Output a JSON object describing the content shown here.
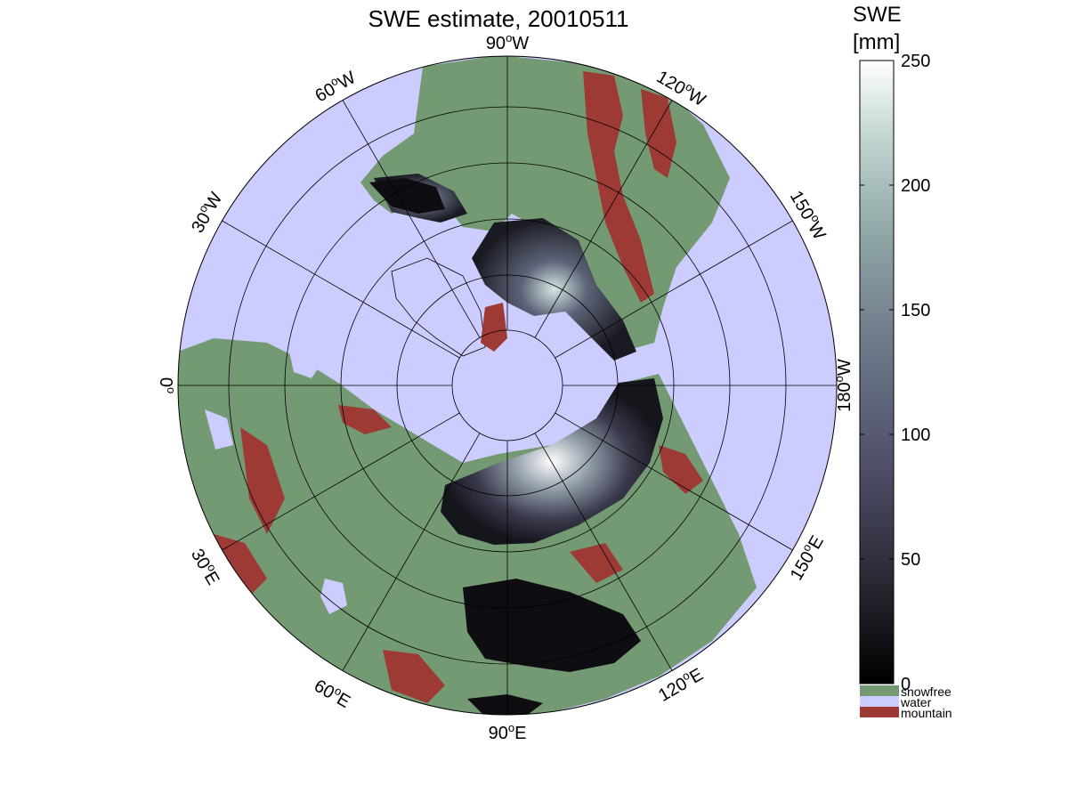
{
  "title": "SWE estimate, 20010511",
  "colorbar": {
    "title_line1": "SWE",
    "title_line2": "[mm]",
    "min": 0,
    "max": 250,
    "ticks": [
      "0",
      "50",
      "100",
      "150",
      "200",
      "250"
    ],
    "gradient_colors": [
      "#000000",
      "#2a2a35",
      "#4f4f6a",
      "#6e7a8a",
      "#8fa6a6",
      "#c2d6d2",
      "#ffffff"
    ],
    "categories": [
      {
        "label": "snowfree",
        "color": "#739a73"
      },
      {
        "label": "water",
        "color": "#ccccff"
      },
      {
        "label": "mountain",
        "color": "#9e3a36"
      }
    ]
  },
  "map": {
    "projection": "north polar stereographic",
    "ocean_color": "#ccccff",
    "land_color": "#739a73",
    "mountain_color": "#9e3a36",
    "meridian_labels": [
      {
        "deg": "90",
        "hemi": "W"
      },
      {
        "deg": "120",
        "hemi": "W"
      },
      {
        "deg": "150",
        "hemi": "W"
      },
      {
        "deg": "180",
        "hemi": "W"
      },
      {
        "deg": "150",
        "hemi": "E"
      },
      {
        "deg": "120",
        "hemi": "E"
      },
      {
        "deg": "90",
        "hemi": "E"
      },
      {
        "deg": "60",
        "hemi": "E"
      },
      {
        "deg": "30",
        "hemi": "E"
      },
      {
        "deg": "0",
        "hemi": ""
      },
      {
        "deg": "30",
        "hemi": "W"
      },
      {
        "deg": "60",
        "hemi": "W"
      }
    ]
  }
}
